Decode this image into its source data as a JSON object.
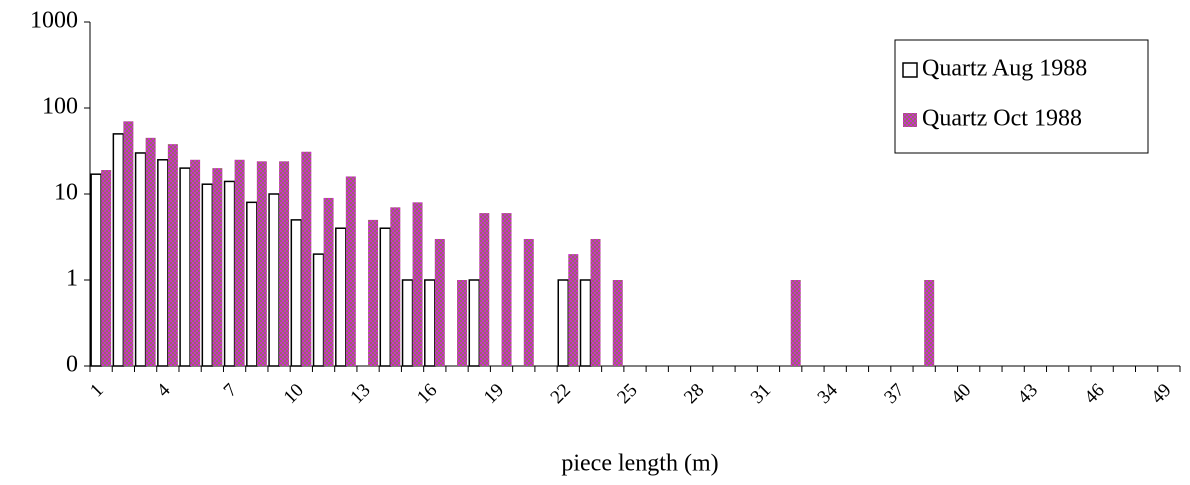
{
  "chart_data": {
    "type": "bar",
    "x_label": "piece length (m)",
    "log_scale": true,
    "categories": [
      "1",
      null,
      null,
      "4",
      null,
      null,
      "7",
      null,
      null,
      "10",
      null,
      null,
      "13",
      null,
      null,
      "16",
      null,
      null,
      "19",
      null,
      null,
      "22",
      null,
      null,
      "25",
      null,
      null,
      "28",
      null,
      null,
      "31",
      null,
      null,
      "34",
      null,
      null,
      "37",
      null,
      null,
      "40",
      null,
      null,
      "43",
      null,
      null,
      "46",
      null,
      null,
      "49"
    ],
    "series": [
      {
        "name": "Quartz Aug 1988",
        "color": "#ffffff",
        "values": [
          17,
          50,
          30,
          25,
          20,
          13,
          14,
          8,
          10,
          5,
          2,
          4,
          null,
          4,
          1,
          1,
          null,
          1,
          null,
          null,
          null,
          1,
          1,
          null,
          null,
          null,
          null,
          null,
          null,
          null,
          null,
          null,
          null,
          null,
          null,
          null,
          null,
          null,
          null,
          null,
          null,
          null,
          null,
          null,
          null,
          null,
          null,
          null,
          null
        ]
      },
      {
        "name": "Quartz Oct 1988",
        "color": "#cc33cc",
        "values": [
          19,
          70,
          45,
          38,
          25,
          20,
          25,
          24,
          24,
          31,
          9,
          16,
          5,
          7,
          8,
          3,
          1,
          6,
          6,
          3,
          null,
          2,
          3,
          1,
          null,
          null,
          null,
          null,
          null,
          null,
          null,
          1,
          null,
          null,
          null,
          null,
          null,
          1,
          null,
          null,
          null,
          null,
          null,
          null,
          null,
          null,
          null,
          null,
          null
        ]
      }
    ],
    "ylim": [
      0.1,
      1000
    ],
    "yticks": [
      {
        "value": 0.1,
        "label": "0"
      },
      1,
      10,
      100,
      1000
    ],
    "legend": "upper-right"
  }
}
